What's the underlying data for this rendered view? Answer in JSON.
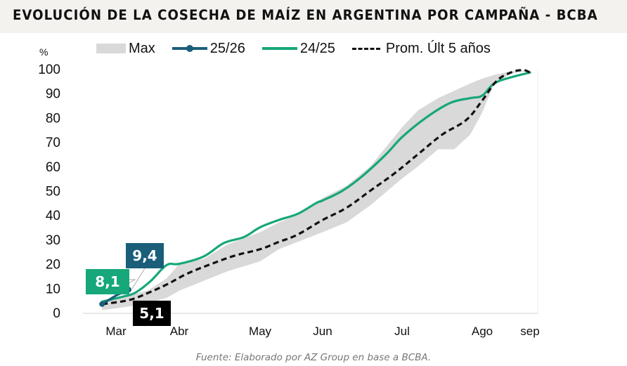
{
  "chart_data": {
    "type": "area+line",
    "title": "EVOLUCIÓN DE LA COSECHA DE MAÍZ EN ARGENTINA POR CAMPAÑA - BCBA",
    "ylabel": "%",
    "xlabel": "",
    "ylim": [
      0,
      100
    ],
    "y_ticks": [
      0,
      10,
      20,
      30,
      40,
      50,
      60,
      70,
      80,
      90,
      100
    ],
    "x_ticks": [
      "Mar",
      "Abr",
      "May",
      "Jun",
      "Jul",
      "Ago",
      "sep"
    ],
    "legend_position": "top",
    "grid": false,
    "source": "Fuente: Elaborado por AZ Group en base a BCBA.",
    "colors": {
      "max": "#d9d9d9",
      "s2526": "#1a5e7a",
      "s2425": "#16a77a",
      "avg": "#111111"
    },
    "legend": [
      "Max",
      "25/26",
      "24/25",
      "Prom. Últ 5 años"
    ],
    "x_domain": {
      "start_month_index": 0,
      "end_month_index": 6
    },
    "series": [
      {
        "name": "Max",
        "kind": "band",
        "x": [
          -0.22,
          0.2,
          0.5,
          0.8,
          1.0,
          1.3,
          1.6,
          2.0,
          2.3,
          2.6,
          3.0,
          3.3,
          3.6,
          4.0,
          4.2,
          4.45,
          4.65,
          4.85,
          5.0,
          5.25,
          5.6,
          5.85,
          6.0
        ],
        "upper": [
          4,
          7,
          9,
          14,
          20,
          22,
          28,
          33,
          37,
          40,
          47,
          52,
          60,
          76,
          83,
          88,
          91,
          94,
          96,
          97.5,
          99,
          99.5,
          98.5
        ],
        "lower": [
          1,
          2.5,
          4,
          6,
          9,
          13,
          17,
          21,
          26,
          29,
          33,
          37,
          44,
          55,
          60,
          67,
          67,
          73,
          82,
          94,
          98,
          99,
          98.5
        ]
      },
      {
        "name": "25/26",
        "kind": "line-markers",
        "x": [
          -0.22,
          0.0,
          0.2
        ],
        "values": [
          3.5,
          7.0,
          9.4
        ]
      },
      {
        "name": "24/25",
        "kind": "line",
        "x": [
          -0.22,
          0.1,
          0.3,
          0.55,
          0.8,
          1.0,
          1.3,
          1.55,
          1.8,
          2.0,
          2.3,
          2.6,
          2.9,
          3.0,
          3.25,
          3.5,
          3.8,
          4.0,
          4.3,
          4.6,
          4.85,
          5.0,
          5.25,
          5.6,
          6.0
        ],
        "values": [
          4.5,
          6.5,
          8.1,
          13,
          19.5,
          20,
          23,
          28.5,
          31,
          35,
          38,
          40.5,
          45,
          46,
          50,
          56,
          65,
          72,
          80,
          86,
          88,
          89,
          94,
          96.5,
          98.5
        ]
      },
      {
        "name": "Prom. Últ 5 años",
        "kind": "dashed-line",
        "x": [
          -0.22,
          0.2,
          0.5,
          0.8,
          1.1,
          1.4,
          1.7,
          2.0,
          2.3,
          2.6,
          3.0,
          3.3,
          3.6,
          3.9,
          4.2,
          4.5,
          4.8,
          5.0,
          5.3,
          5.6,
          5.85,
          6.0
        ],
        "values": [
          3.5,
          5.1,
          8,
          11.5,
          16,
          20,
          23.5,
          26,
          29,
          32,
          38,
          43,
          50,
          57,
          65,
          73,
          79,
          87,
          95,
          98.5,
          99.5,
          98.5
        ]
      }
    ],
    "annotations": [
      {
        "series": "24/25",
        "label": "8,1",
        "x": 0.2,
        "y": 8.1,
        "color": "#16a77a"
      },
      {
        "series": "25/26",
        "label": "9,4",
        "x": 0.2,
        "y": 9.4,
        "color": "#1a5e7a"
      },
      {
        "series": "Prom. Últ 5 años",
        "label": "5,1",
        "x": 0.2,
        "y": 5.1,
        "color": "#000000"
      }
    ]
  }
}
